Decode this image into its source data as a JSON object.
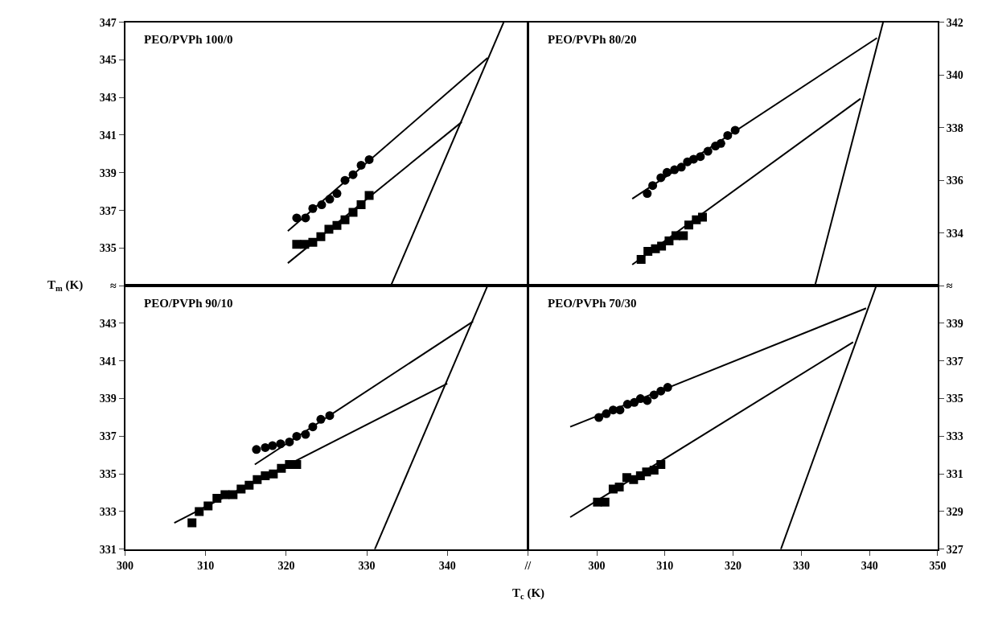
{
  "chart_data": [
    {
      "type": "scatter",
      "title": "PEO/PVPh 100/0",
      "ylabel": "T$_{m}$ (K)",
      "xlim": [
        300,
        350
      ],
      "xticks": [
        300,
        310,
        320,
        330,
        340
      ],
      "ylim": [
        333,
        347
      ],
      "yticks": [
        {
          "value": 333,
          "label": "≈"
        },
        335,
        337,
        339,
        341,
        343,
        345,
        347
      ],
      "tick_labels": "y",
      "series": [
        {
          "marker": "circle",
          "color": "#000000",
          "x": [
            321.3,
            322.4,
            323.3,
            324.4,
            325.4,
            326.3,
            327.3,
            328.3,
            329.3,
            330.3
          ],
          "values": [
            336.6,
            336.6,
            337.1,
            337.3,
            337.6,
            337.9,
            338.6,
            338.9,
            339.4,
            339.7
          ]
        },
        {
          "marker": "square",
          "color": "#000000",
          "x": [
            321.3,
            322.3,
            323.3,
            324.3,
            325.3,
            326.3,
            327.3,
            328.3,
            329.3,
            330.3
          ],
          "values": [
            335.2,
            335.2,
            335.3,
            335.6,
            336.0,
            336.2,
            336.5,
            336.9,
            337.3,
            337.8
          ]
        },
        {
          "type": "line",
          "color": "#000000",
          "x": [
            320.2,
            345.0
          ],
          "values": [
            335.9,
            345.1
          ]
        },
        {
          "type": "line",
          "color": "#000000",
          "x": [
            320.2,
            341.8
          ],
          "values": [
            334.2,
            341.7
          ]
        },
        {
          "type": "line",
          "color": "#000000",
          "x": [
            333,
            347
          ],
          "values": [
            333,
            347
          ]
        }
      ]
    },
    {
      "type": "scatter",
      "title": "PEO/PVPh 80/20",
      "xlim": [
        290,
        350
      ],
      "xticks": [
        300,
        310,
        320,
        330,
        340,
        350
      ],
      "ylim": [
        332,
        342
      ],
      "yticks": [
        {
          "value": 332,
          "label": "≈"
        },
        334,
        336,
        338,
        340,
        342
      ],
      "tick_labels": "y",
      "series": [
        {
          "marker": "circle",
          "color": "#000000",
          "x": [
            307.4,
            308.2,
            309.4,
            310.3,
            311.4,
            312.4,
            313.3,
            314.2,
            315.2,
            316.3,
            317.4,
            318.2,
            319.2,
            320.3
          ],
          "values": [
            335.5,
            335.8,
            336.1,
            336.3,
            336.4,
            336.5,
            336.7,
            336.8,
            336.9,
            337.1,
            337.3,
            337.4,
            337.7,
            337.9
          ]
        },
        {
          "marker": "square",
          "color": "#000000",
          "x": [
            306.5,
            307.5,
            308.6,
            309.5,
            310.6,
            311.6,
            312.7,
            313.5,
            314.6,
            315.5
          ],
          "values": [
            333.0,
            333.3,
            333.4,
            333.5,
            333.7,
            333.9,
            333.9,
            334.3,
            334.5,
            334.6
          ]
        },
        {
          "type": "line",
          "color": "#000000",
          "x": [
            305.2,
            341.1
          ],
          "values": [
            335.3,
            341.4
          ]
        },
        {
          "type": "line",
          "color": "#000000",
          "x": [
            305.2,
            338.7
          ],
          "values": [
            332.8,
            339.1
          ]
        },
        {
          "type": "line",
          "color": "#000000",
          "x": [
            332,
            342
          ],
          "values": [
            332,
            342
          ]
        }
      ]
    },
    {
      "type": "scatter",
      "title": "PEO/PVPh 90/10",
      "xlabel": "T$_{c}$ (K)",
      "xlim": [
        300,
        350
      ],
      "xticks": [
        300,
        310,
        320,
        330,
        340,
        {
          "value": 350,
          "label": "//"
        }
      ],
      "ylim": [
        331,
        345
      ],
      "yticks": [
        331,
        333,
        335,
        337,
        339,
        341,
        343
      ],
      "series": [
        {
          "marker": "circle",
          "color": "#000000",
          "x": [
            316.3,
            317.4,
            318.3,
            319.3,
            320.4,
            321.3,
            322.4,
            323.3,
            324.3,
            325.4
          ],
          "values": [
            336.3,
            336.4,
            336.5,
            336.6,
            336.7,
            337.0,
            337.1,
            337.5,
            337.9,
            338.1
          ]
        },
        {
          "marker": "square",
          "color": "#000000",
          "x": [
            308.3,
            309.2,
            310.3,
            311.4,
            312.4,
            313.4,
            314.4,
            315.4,
            316.4,
            317.4,
            318.4,
            319.4,
            320.4,
            321.3
          ],
          "values": [
            332.4,
            333.0,
            333.3,
            333.7,
            333.9,
            333.9,
            334.2,
            334.4,
            334.7,
            334.9,
            335.0,
            335.3,
            335.5,
            335.5
          ]
        },
        {
          "type": "line",
          "color": "#000000",
          "x": [
            316.1,
            343.2
          ],
          "values": [
            335.5,
            343.1
          ]
        },
        {
          "type": "line",
          "color": "#000000",
          "x": [
            306.1,
            340.0
          ],
          "values": [
            332.4,
            339.8
          ]
        },
        {
          "type": "line",
          "color": "#000000",
          "x": [
            331,
            345
          ],
          "values": [
            331,
            345
          ]
        }
      ]
    },
    {
      "type": "scatter",
      "title": "PEO/PVPh 70/30",
      "xlim": [
        290,
        350
      ],
      "xticks": [
        300,
        310,
        320,
        330,
        340,
        350
      ],
      "ylim": [
        327,
        341
      ],
      "yticks": [
        327,
        329,
        331,
        333,
        335,
        337,
        339
      ],
      "series": [
        {
          "marker": "circle",
          "color": "#000000",
          "x": [
            300.3,
            301.4,
            302.4,
            303.4,
            304.5,
            305.5,
            306.4,
            307.4,
            308.4,
            309.4,
            310.4
          ],
          "values": [
            334.0,
            334.2,
            334.4,
            334.4,
            334.7,
            334.8,
            335.0,
            334.9,
            335.2,
            335.4,
            335.6
          ]
        },
        {
          "marker": "square",
          "color": "#000000",
          "x": [
            300.1,
            301.2,
            302.4,
            303.3,
            304.4,
            305.4,
            306.4,
            307.3,
            308.4,
            309.4
          ],
          "values": [
            329.5,
            329.5,
            330.2,
            330.3,
            330.8,
            330.7,
            330.9,
            331.1,
            331.2,
            331.5
          ]
        },
        {
          "type": "line",
          "color": "#000000",
          "x": [
            296.1,
            339.5
          ],
          "values": [
            333.5,
            339.8
          ]
        },
        {
          "type": "line",
          "color": "#000000",
          "x": [
            296.1,
            337.6
          ],
          "values": [
            328.7,
            338.0
          ]
        },
        {
          "type": "line",
          "color": "#000000",
          "x": [
            327,
            341
          ],
          "values": [
            327,
            341
          ]
        }
      ]
    }
  ]
}
